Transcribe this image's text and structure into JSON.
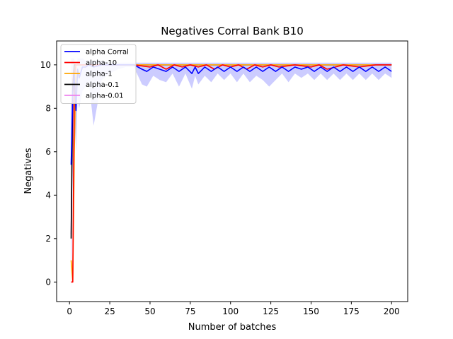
{
  "chart_data": {
    "type": "line",
    "title": "Negatives Corral Bank B10",
    "xlabel": "Number of batches",
    "ylabel": "Negatives",
    "xlim": [
      -8,
      210
    ],
    "ylim": [
      -0.9,
      11.1
    ],
    "xticks": [
      0,
      25,
      50,
      75,
      100,
      125,
      150,
      175,
      200
    ],
    "yticks": [
      0,
      2,
      4,
      6,
      8,
      10
    ],
    "grid": false,
    "legend_position": "top-left",
    "series": [
      {
        "name": "alpha Corral",
        "color": "#0000ff",
        "band_color": "#9999ff",
        "x": [
          1,
          2,
          3,
          4,
          5,
          6,
          8,
          10,
          12,
          15,
          20,
          25,
          30,
          35,
          40,
          45,
          48,
          52,
          56,
          60,
          64,
          68,
          72,
          76,
          78,
          80,
          84,
          88,
          92,
          96,
          100,
          104,
          108,
          112,
          116,
          120,
          124,
          128,
          132,
          136,
          140,
          144,
          148,
          152,
          156,
          160,
          164,
          168,
          172,
          176,
          180,
          184,
          188,
          192,
          196,
          200
        ],
        "values": [
          5.4,
          8.7,
          9.6,
          7.9,
          9.8,
          9.4,
          9.9,
          9.9,
          10.0,
          9.9,
          10.0,
          10.0,
          10.0,
          10.0,
          10.0,
          9.8,
          9.7,
          9.9,
          9.8,
          9.7,
          9.9,
          9.7,
          9.9,
          9.6,
          9.9,
          9.6,
          9.9,
          9.7,
          9.9,
          9.7,
          9.9,
          9.7,
          9.9,
          9.7,
          9.9,
          9.7,
          9.9,
          9.7,
          9.9,
          9.7,
          9.9,
          9.8,
          9.9,
          9.7,
          9.9,
          9.7,
          9.9,
          9.7,
          9.9,
          9.7,
          9.9,
          9.7,
          9.9,
          9.7,
          9.9,
          9.7
        ],
        "band_low": [
          -0.3,
          5.5,
          8.6,
          6.0,
          8.5,
          8.0,
          8.8,
          9.0,
          9.2,
          7.2,
          9.3,
          9.6,
          9.8,
          9.9,
          9.9,
          9.1,
          9.0,
          9.5,
          9.3,
          9.2,
          9.6,
          9.0,
          9.6,
          8.9,
          9.5,
          9.1,
          9.5,
          9.2,
          9.6,
          9.3,
          9.6,
          9.2,
          9.6,
          9.2,
          9.5,
          9.3,
          9.0,
          9.3,
          9.6,
          9.2,
          9.6,
          9.4,
          9.6,
          9.3,
          9.6,
          9.3,
          9.6,
          9.3,
          9.6,
          9.3,
          9.6,
          9.3,
          9.6,
          9.3,
          9.6,
          9.4
        ],
        "band_high": [
          10.3,
          10.3,
          10.3,
          9.6,
          10.3,
          10.3,
          10.3,
          10.2,
          10.2,
          10.2,
          10.2,
          10.1,
          10.1,
          10.1,
          10.1,
          10.1,
          10.1,
          10.1,
          10.1,
          10.1,
          10.1,
          10.1,
          10.1,
          10.1,
          10.1,
          10.1,
          10.1,
          10.1,
          10.1,
          10.1,
          10.1,
          10.1,
          10.1,
          10.1,
          10.1,
          10.1,
          10.1,
          10.1,
          10.1,
          10.1,
          10.1,
          10.1,
          10.1,
          10.1,
          10.1,
          10.1,
          10.1,
          10.1,
          10.1,
          10.1,
          10.1,
          10.1,
          10.1,
          10.1,
          10.1,
          10.1
        ]
      },
      {
        "name": "alpha-10",
        "color": "#ff0000",
        "x": [
          1,
          2,
          3,
          4,
          6,
          10,
          20,
          40,
          50,
          55,
          60,
          65,
          70,
          75,
          80,
          85,
          90,
          95,
          100,
          105,
          110,
          115,
          120,
          125,
          130,
          140,
          150,
          155,
          160,
          170,
          180,
          190,
          200
        ],
        "values": [
          0.0,
          0.0,
          9.5,
          10.0,
          10.0,
          10.0,
          10.0,
          10.0,
          9.9,
          10.0,
          9.8,
          10.0,
          9.9,
          10.0,
          9.9,
          10.0,
          9.8,
          10.0,
          9.9,
          10.0,
          9.8,
          10.0,
          9.9,
          10.0,
          9.9,
          10.0,
          9.9,
          10.0,
          9.8,
          10.0,
          9.9,
          10.0,
          10.0
        ]
      },
      {
        "name": "alpha-1",
        "color": "#ffa500",
        "x": [
          1,
          2,
          3,
          4,
          6,
          10,
          50,
          100,
          150,
          200
        ],
        "values": [
          1.0,
          0.0,
          6.0,
          10.0,
          10.0,
          10.0,
          10.0,
          10.0,
          10.0,
          10.0
        ]
      },
      {
        "name": "alpha-0.1",
        "color": "#000000",
        "x": [
          1,
          2,
          3,
          4,
          6,
          10,
          50,
          100,
          150,
          200
        ],
        "values": [
          2.0,
          9.0,
          10.0,
          10.0,
          10.0,
          10.0,
          10.0,
          10.0,
          10.0,
          10.0
        ]
      },
      {
        "name": "alpha-0.01",
        "color": "#ee82ee",
        "x": [
          1,
          2,
          3,
          4,
          6,
          10,
          50,
          100,
          150,
          200
        ],
        "values": [
          2.2,
          9.5,
          10.0,
          10.0,
          10.0,
          10.0,
          10.0,
          10.0,
          10.0,
          10.0
        ]
      }
    ]
  }
}
